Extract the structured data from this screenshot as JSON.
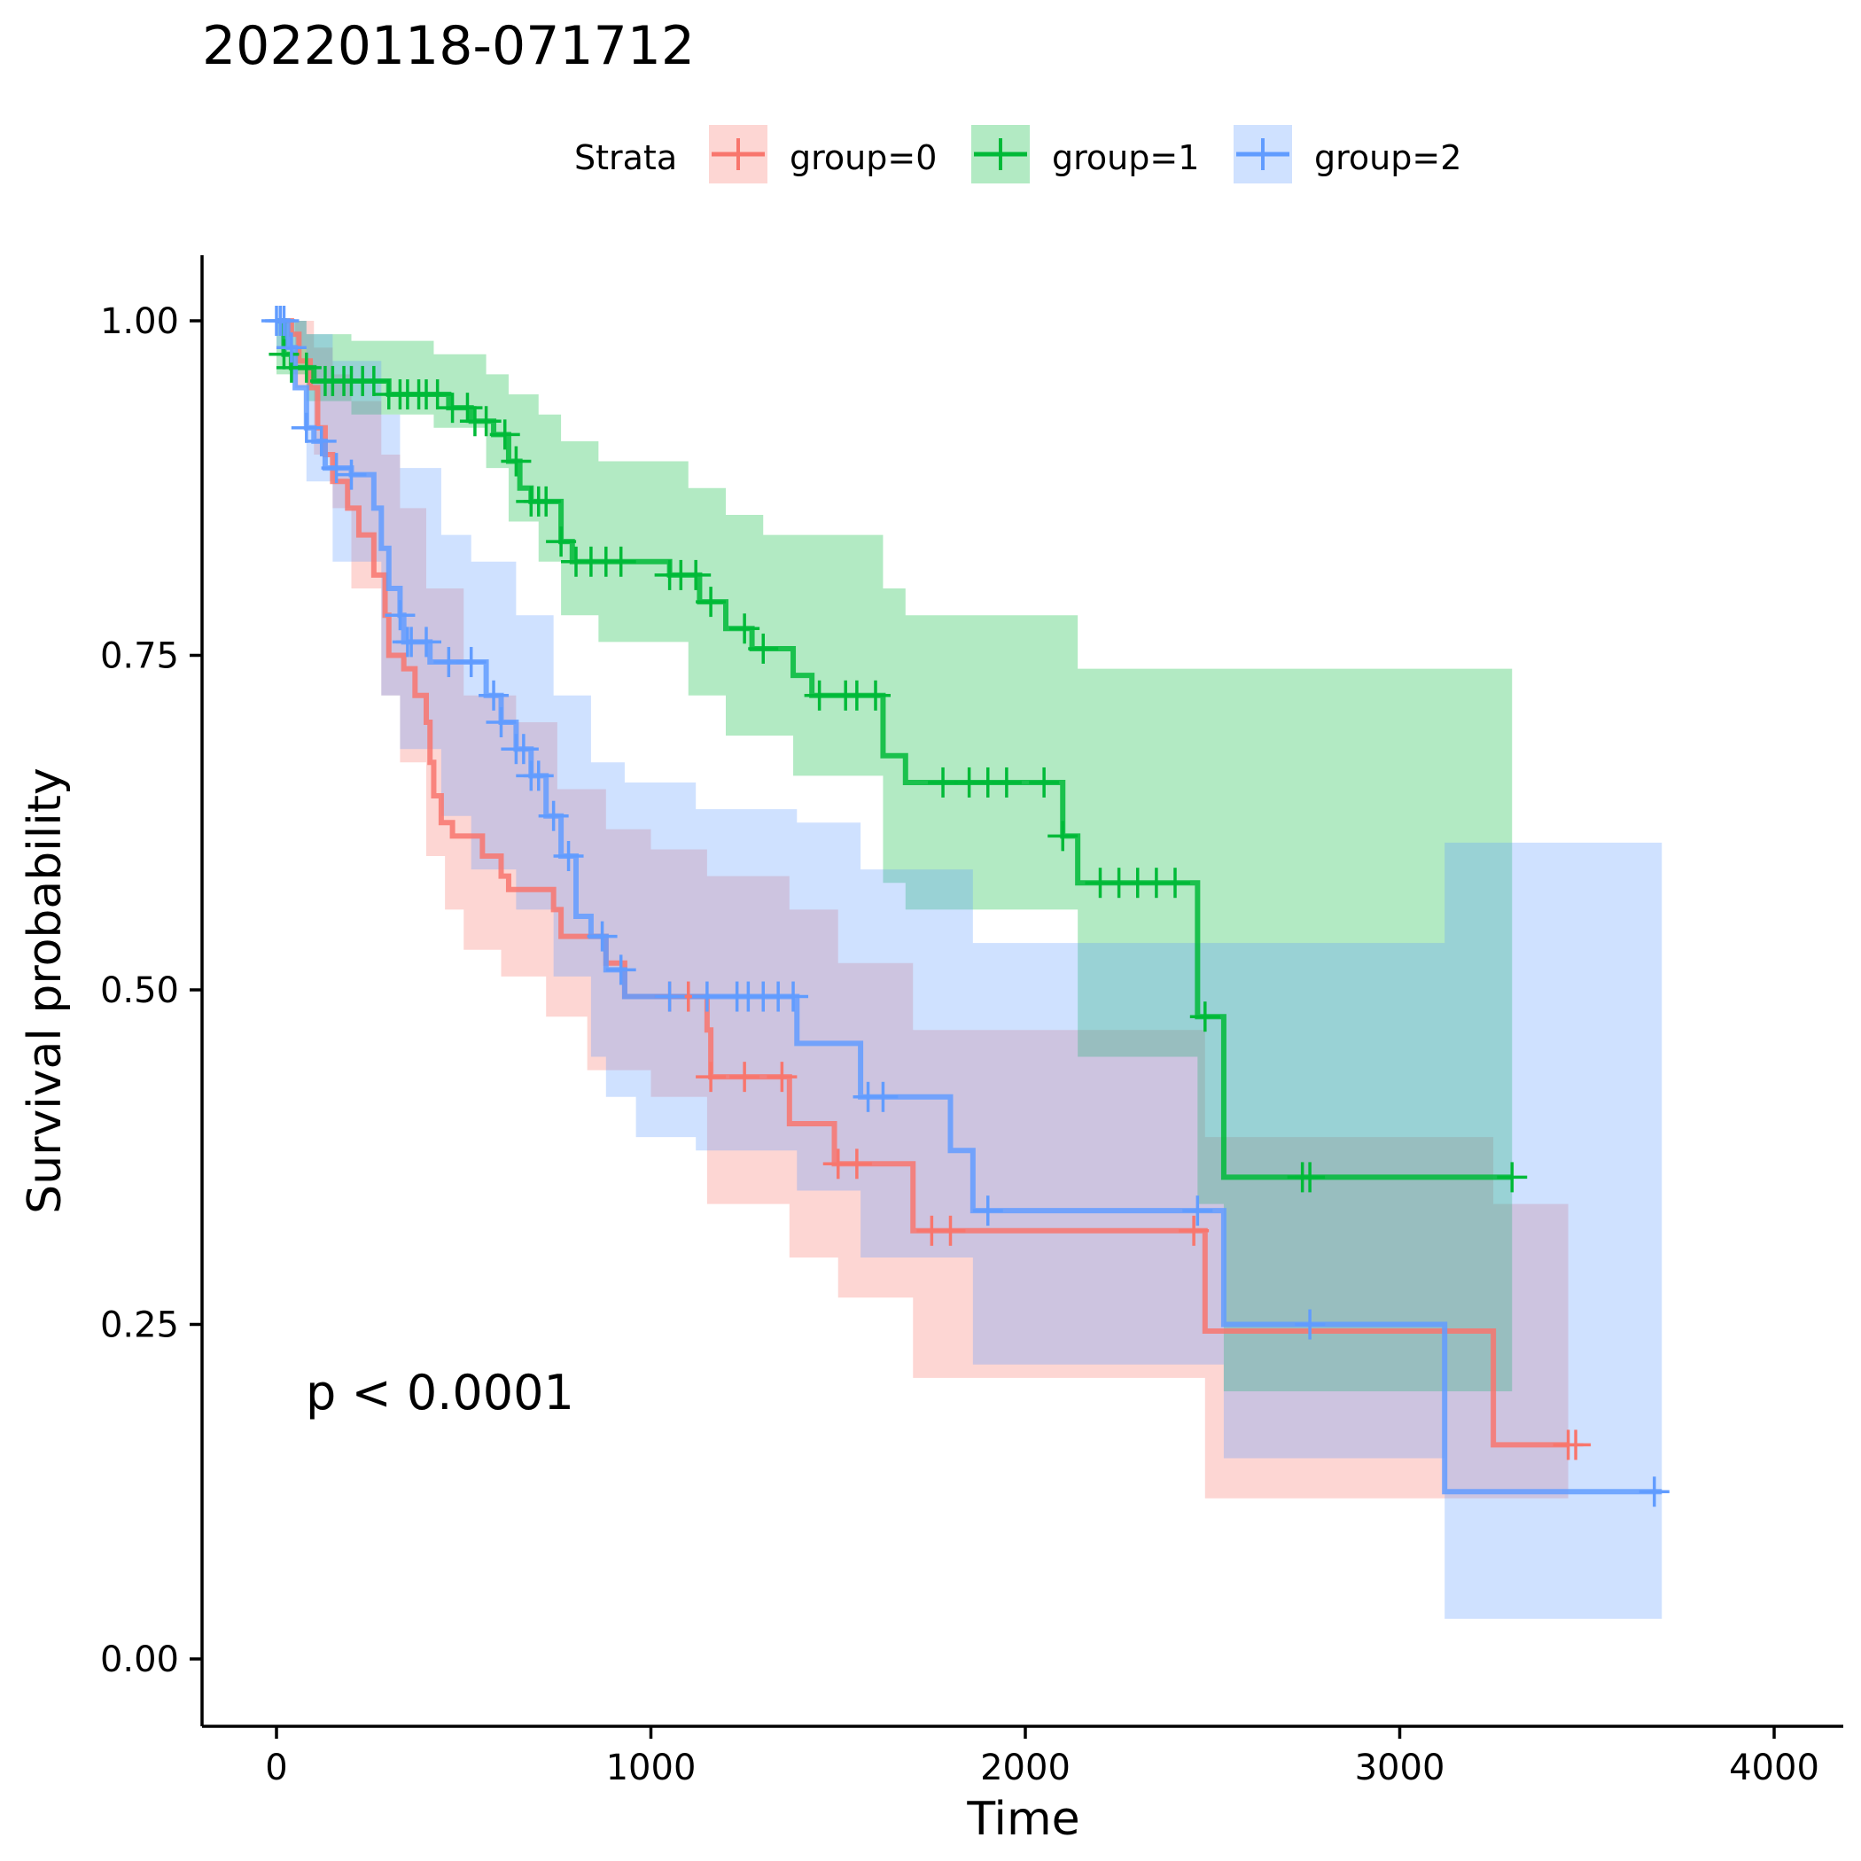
{
  "chart_data": {
    "type": "line",
    "subtype": "kaplan-meier",
    "title": "20220118-071712",
    "xlabel": "Time",
    "ylabel": "Survival probability",
    "xlim": [
      -200,
      4200
    ],
    "ylim": [
      -0.05,
      1.05
    ],
    "x_ticks": [
      0,
      1000,
      2000,
      3000,
      4000
    ],
    "x_tick_labels": [
      "0",
      "1000",
      "2000",
      "3000",
      "4000"
    ],
    "y_ticks": [
      0,
      0.25,
      0.5,
      0.75,
      1.0
    ],
    "y_tick_labels": [
      "0.00",
      "0.25",
      "0.50",
      "0.75",
      "1.00"
    ],
    "annotation": "p < 0.0001",
    "legend": {
      "title": "Strata",
      "position": "top"
    },
    "series": [
      {
        "name": "group=0",
        "color": "#F8766D",
        "steps": [
          [
            0,
            1.0
          ],
          [
            40,
            0.99
          ],
          [
            60,
            0.97
          ],
          [
            90,
            0.95
          ],
          [
            110,
            0.92
          ],
          [
            130,
            0.9
          ],
          [
            150,
            0.88
          ],
          [
            190,
            0.86
          ],
          [
            220,
            0.84
          ],
          [
            260,
            0.81
          ],
          [
            290,
            0.78
          ],
          [
            300,
            0.75
          ],
          [
            340,
            0.74
          ],
          [
            370,
            0.72
          ],
          [
            400,
            0.7
          ],
          [
            410,
            0.67
          ],
          [
            420,
            0.645
          ],
          [
            440,
            0.625
          ],
          [
            470,
            0.615
          ],
          [
            550,
            0.6
          ],
          [
            600,
            0.585
          ],
          [
            620,
            0.575
          ],
          [
            740,
            0.56
          ],
          [
            760,
            0.54
          ],
          [
            880,
            0.52
          ],
          [
            930,
            0.495
          ],
          [
            1150,
            0.47
          ],
          [
            1160,
            0.435
          ],
          [
            1370,
            0.4
          ],
          [
            1490,
            0.37
          ],
          [
            1700,
            0.32
          ],
          [
            2480,
            0.245
          ],
          [
            3250,
            0.16
          ],
          [
            3450,
            0.16
          ]
        ],
        "censor": [
          1050,
          1100,
          1160,
          1250,
          1350,
          1500,
          1550,
          1750,
          1800,
          2450,
          3450,
          3470
        ],
        "ci_upper": [
          [
            0,
            1.0
          ],
          [
            50,
            1.0
          ],
          [
            100,
            0.98
          ],
          [
            150,
            0.96
          ],
          [
            200,
            0.94
          ],
          [
            280,
            0.9
          ],
          [
            330,
            0.86
          ],
          [
            400,
            0.8
          ],
          [
            500,
            0.72
          ],
          [
            640,
            0.7
          ],
          [
            750,
            0.65
          ],
          [
            880,
            0.62
          ],
          [
            1000,
            0.605
          ],
          [
            1150,
            0.585
          ],
          [
            1370,
            0.56
          ],
          [
            1500,
            0.52
          ],
          [
            1700,
            0.47
          ],
          [
            2480,
            0.39
          ],
          [
            3250,
            0.34
          ],
          [
            3450,
            0.34
          ]
        ],
        "ci_lower": [
          [
            0,
            1.0
          ],
          [
            50,
            0.95
          ],
          [
            100,
            0.9
          ],
          [
            150,
            0.86
          ],
          [
            200,
            0.8
          ],
          [
            280,
            0.72
          ],
          [
            330,
            0.67
          ],
          [
            400,
            0.6
          ],
          [
            450,
            0.56
          ],
          [
            500,
            0.53
          ],
          [
            600,
            0.51
          ],
          [
            720,
            0.48
          ],
          [
            830,
            0.44
          ],
          [
            1000,
            0.42
          ],
          [
            1150,
            0.34
          ],
          [
            1370,
            0.3
          ],
          [
            1500,
            0.27
          ],
          [
            1700,
            0.21
          ],
          [
            2480,
            0.12
          ],
          [
            3250,
            0.12
          ],
          [
            3450,
            0.12
          ]
        ]
      },
      {
        "name": "group=1",
        "color": "#00BA38",
        "steps": [
          [
            0,
            1.0
          ],
          [
            20,
            0.975
          ],
          [
            40,
            0.965
          ],
          [
            100,
            0.955
          ],
          [
            300,
            0.945
          ],
          [
            460,
            0.935
          ],
          [
            520,
            0.925
          ],
          [
            580,
            0.915
          ],
          [
            620,
            0.895
          ],
          [
            650,
            0.875
          ],
          [
            680,
            0.865
          ],
          [
            760,
            0.835
          ],
          [
            790,
            0.82
          ],
          [
            1050,
            0.81
          ],
          [
            1130,
            0.79
          ],
          [
            1200,
            0.77
          ],
          [
            1270,
            0.755
          ],
          [
            1380,
            0.735
          ],
          [
            1430,
            0.72
          ],
          [
            1620,
            0.675
          ],
          [
            1680,
            0.655
          ],
          [
            2100,
            0.615
          ],
          [
            2140,
            0.58
          ],
          [
            2460,
            0.48
          ],
          [
            2530,
            0.36
          ],
          [
            3300,
            0.36
          ]
        ],
        "censor": [
          20,
          40,
          80,
          130,
          150,
          180,
          200,
          230,
          260,
          300,
          330,
          350,
          380,
          400,
          430,
          470,
          510,
          530,
          560,
          610,
          640,
          680,
          700,
          720,
          760,
          800,
          840,
          880,
          920,
          1050,
          1080,
          1120,
          1160,
          1250,
          1300,
          1450,
          1520,
          1550,
          1600,
          1780,
          1850,
          1900,
          1950,
          2050,
          2100,
          2200,
          2250,
          2300,
          2350,
          2400,
          2480,
          2740,
          2760,
          3300
        ],
        "ci_upper": [
          [
            0,
            1.0
          ],
          [
            80,
            0.99
          ],
          [
            200,
            0.985
          ],
          [
            420,
            0.975
          ],
          [
            560,
            0.96
          ],
          [
            620,
            0.945
          ],
          [
            700,
            0.93
          ],
          [
            760,
            0.91
          ],
          [
            860,
            0.895
          ],
          [
            1100,
            0.875
          ],
          [
            1200,
            0.855
          ],
          [
            1300,
            0.84
          ],
          [
            1620,
            0.8
          ],
          [
            1680,
            0.78
          ],
          [
            2140,
            0.74
          ],
          [
            2460,
            0.74
          ],
          [
            2530,
            0.74
          ],
          [
            3300,
            0.74
          ]
        ],
        "ci_lower": [
          [
            0,
            0.96
          ],
          [
            80,
            0.94
          ],
          [
            200,
            0.93
          ],
          [
            420,
            0.92
          ],
          [
            560,
            0.89
          ],
          [
            620,
            0.85
          ],
          [
            700,
            0.82
          ],
          [
            760,
            0.78
          ],
          [
            860,
            0.76
          ],
          [
            1100,
            0.72
          ],
          [
            1200,
            0.69
          ],
          [
            1380,
            0.66
          ],
          [
            1620,
            0.58
          ],
          [
            1680,
            0.56
          ],
          [
            2140,
            0.45
          ],
          [
            2460,
            0.34
          ],
          [
            2530,
            0.2
          ],
          [
            3300,
            0.2
          ]
        ]
      },
      {
        "name": "group=2",
        "color": "#619CFF",
        "steps": [
          [
            0,
            1.0
          ],
          [
            30,
            0.98
          ],
          [
            50,
            0.95
          ],
          [
            80,
            0.92
          ],
          [
            100,
            0.91
          ],
          [
            130,
            0.89
          ],
          [
            200,
            0.885
          ],
          [
            260,
            0.86
          ],
          [
            280,
            0.83
          ],
          [
            300,
            0.8
          ],
          [
            330,
            0.78
          ],
          [
            340,
            0.76
          ],
          [
            410,
            0.745
          ],
          [
            560,
            0.72
          ],
          [
            600,
            0.7
          ],
          [
            640,
            0.68
          ],
          [
            680,
            0.66
          ],
          [
            720,
            0.63
          ],
          [
            760,
            0.6
          ],
          [
            800,
            0.555
          ],
          [
            840,
            0.54
          ],
          [
            880,
            0.515
          ],
          [
            930,
            0.495
          ],
          [
            1120,
            0.495
          ],
          [
            1390,
            0.46
          ],
          [
            1560,
            0.42
          ],
          [
            1800,
            0.38
          ],
          [
            1860,
            0.335
          ],
          [
            2530,
            0.25
          ],
          [
            3120,
            0.125
          ],
          [
            3700,
            0.125
          ]
        ],
        "censor": [
          0,
          10,
          20,
          40,
          80,
          120,
          160,
          200,
          330,
          350,
          360,
          400,
          460,
          520,
          580,
          600,
          640,
          660,
          680,
          700,
          740,
          780,
          870,
          920,
          1050,
          1150,
          1230,
          1260,
          1300,
          1340,
          1380,
          1580,
          1620,
          1900,
          2460,
          2760,
          3680
        ],
        "ci_upper": [
          [
            0,
            1.0
          ],
          [
            80,
            0.99
          ],
          [
            150,
            0.97
          ],
          [
            280,
            0.93
          ],
          [
            330,
            0.89
          ],
          [
            440,
            0.84
          ],
          [
            520,
            0.82
          ],
          [
            640,
            0.78
          ],
          [
            740,
            0.72
          ],
          [
            840,
            0.67
          ],
          [
            930,
            0.655
          ],
          [
            1120,
            0.635
          ],
          [
            1390,
            0.625
          ],
          [
            1560,
            0.59
          ],
          [
            1860,
            0.535
          ],
          [
            2530,
            0.535
          ],
          [
            3120,
            0.61
          ],
          [
            3700,
            0.61
          ]
        ],
        "ci_lower": [
          [
            0,
            0.98
          ],
          [
            80,
            0.88
          ],
          [
            150,
            0.82
          ],
          [
            280,
            0.72
          ],
          [
            330,
            0.68
          ],
          [
            440,
            0.63
          ],
          [
            520,
            0.59
          ],
          [
            640,
            0.56
          ],
          [
            740,
            0.51
          ],
          [
            840,
            0.45
          ],
          [
            880,
            0.42
          ],
          [
            960,
            0.39
          ],
          [
            1120,
            0.38
          ],
          [
            1390,
            0.35
          ],
          [
            1560,
            0.3
          ],
          [
            1860,
            0.22
          ],
          [
            2530,
            0.15
          ],
          [
            3120,
            0.03
          ],
          [
            3700,
            0.03
          ]
        ]
      }
    ]
  }
}
